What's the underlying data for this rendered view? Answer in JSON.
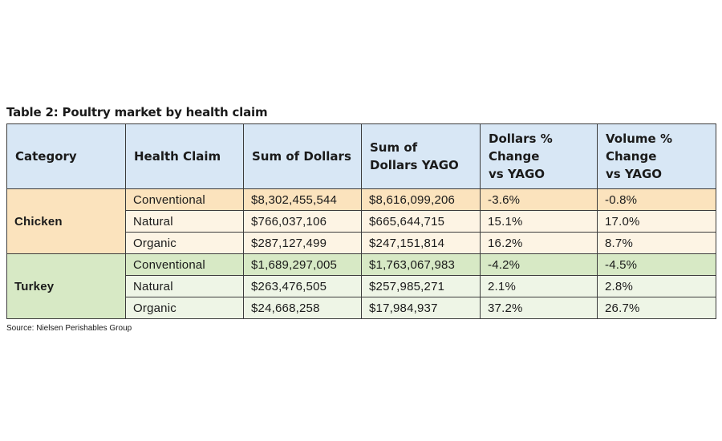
{
  "title": "Table 2: Poultry market by health claim",
  "columns": [
    "Category",
    "Health Claim",
    "Sum of Dollars",
    "Sum of\nDollars YAGO",
    "Dollars %\nChange\nvs YAGO",
    "Volume %\nChange\nvs YAGO"
  ],
  "groups": [
    {
      "category": "Chicken",
      "rows": [
        {
          "claim": "Conventional",
          "dollars": "$8,302,455,544",
          "yago": "$8,616,099,206",
          "dollars_pct": "-3.6%",
          "volume_pct": "-0.8%"
        },
        {
          "claim": "Natural",
          "dollars": "$766,037,106",
          "yago": "$665,644,715",
          "dollars_pct": "15.1%",
          "volume_pct": "17.0%"
        },
        {
          "claim": "Organic",
          "dollars": "$287,127,499",
          "yago": "$247,151,814",
          "dollars_pct": "16.2%",
          "volume_pct": "8.7%"
        }
      ]
    },
    {
      "category": "Turkey",
      "rows": [
        {
          "claim": "Conventional",
          "dollars": "$1,689,297,005",
          "yago": "$1,763,067,983",
          "dollars_pct": "-4.2%",
          "volume_pct": "-4.5%"
        },
        {
          "claim": "Natural",
          "dollars": "$263,476,505",
          "yago": "$257,985,271",
          "dollars_pct": "2.1%",
          "volume_pct": "2.8%"
        },
        {
          "claim": "Organic",
          "dollars": "$24,668,258",
          "yago": "$17,984,937",
          "dollars_pct": "37.2%",
          "volume_pct": "26.7%"
        }
      ]
    }
  ],
  "source": "Source: Nielsen Perishables Group",
  "colors": {
    "header_bg": "#d8e7f5",
    "chicken_dark": "#fbe3bd",
    "chicken_light": "#fdf4e4",
    "turkey_dark": "#d7e9c5",
    "turkey_light": "#eef5e6",
    "border": "#3c3c3c"
  }
}
